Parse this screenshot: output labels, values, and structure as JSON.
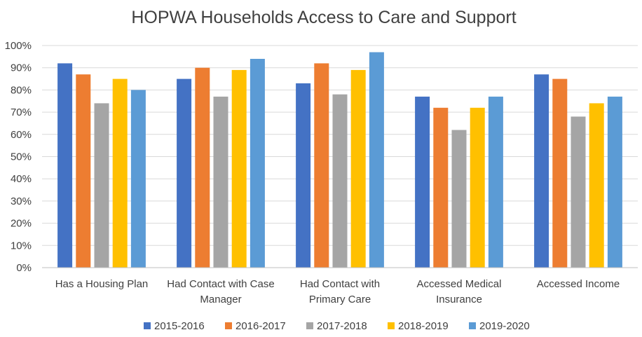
{
  "chart_data": {
    "type": "bar",
    "title": "HOPWA Households Access to Care and Support",
    "xlabel": "",
    "ylabel": "",
    "ylim": [
      0,
      100
    ],
    "yticks": [
      "0%",
      "10%",
      "20%",
      "30%",
      "40%",
      "50%",
      "60%",
      "70%",
      "80%",
      "90%",
      "100%"
    ],
    "grid": true,
    "legend_position": "bottom",
    "categories": [
      [
        "Has a Housing Plan"
      ],
      [
        "Had Contact with Case",
        "Manager"
      ],
      [
        "Had Contact with",
        "Primary Care"
      ],
      [
        "Accessed Medical",
        "Insurance"
      ],
      [
        "Accessed Income"
      ]
    ],
    "series": [
      {
        "name": "2015-2016",
        "color": "#4472c4",
        "values": [
          92,
          85,
          83,
          77,
          87
        ]
      },
      {
        "name": "2016-2017",
        "color": "#ed7d31",
        "values": [
          87,
          90,
          92,
          72,
          85
        ]
      },
      {
        "name": "2017-2018",
        "color": "#a5a5a5",
        "values": [
          74,
          77,
          78,
          62,
          68
        ]
      },
      {
        "name": "2018-2019",
        "color": "#ffc000",
        "values": [
          85,
          89,
          89,
          72,
          74
        ]
      },
      {
        "name": "2019-2020",
        "color": "#5b9bd5",
        "values": [
          80,
          94,
          97,
          77,
          77
        ]
      }
    ]
  }
}
